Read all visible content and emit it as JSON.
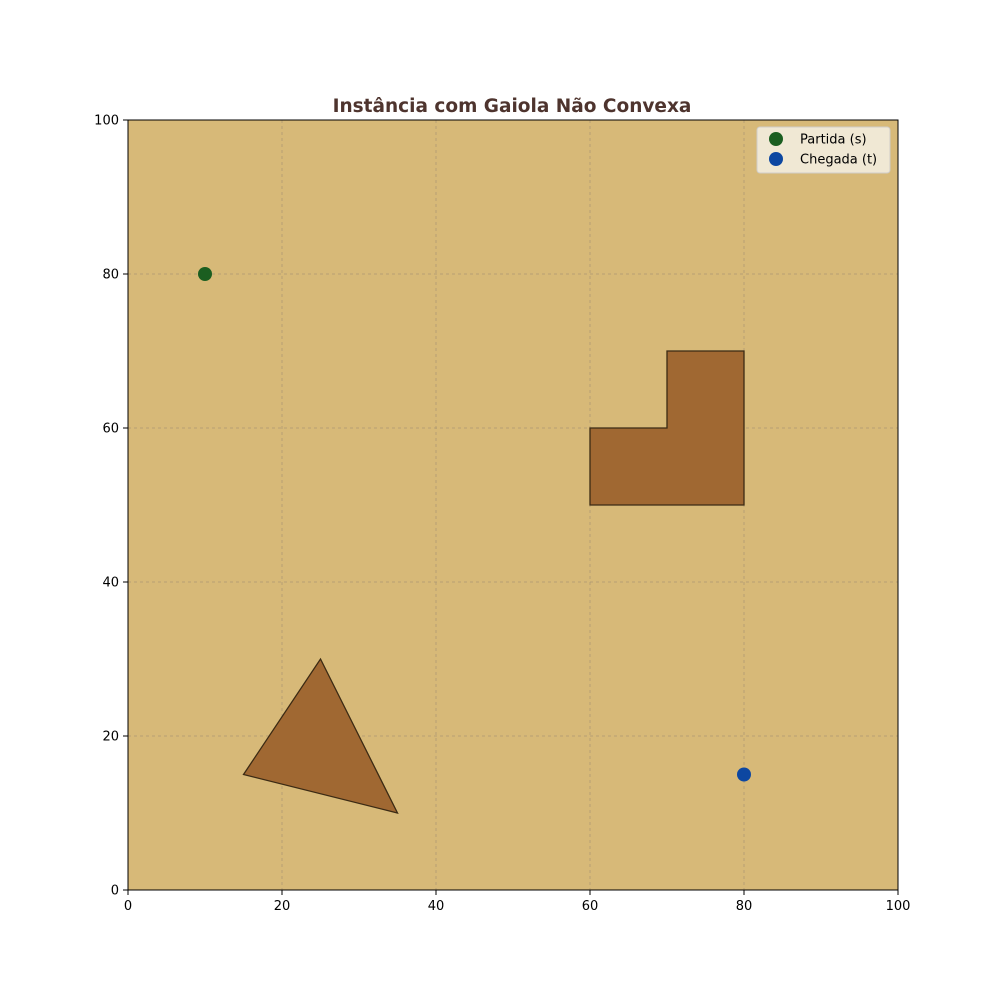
{
  "chart_data": {
    "type": "scatter",
    "title": "Instância com Gaiola Não Convexa",
    "xlabel": "",
    "ylabel": "",
    "xlim": [
      0,
      100
    ],
    "ylim": [
      0,
      100
    ],
    "x_ticks": [
      "0",
      "20",
      "40",
      "60",
      "80",
      "100"
    ],
    "y_ticks": [
      "0",
      "20",
      "40",
      "60",
      "80",
      "100"
    ],
    "grid": true,
    "legend_position": "top-right",
    "series": [
      {
        "name": "Partida (s)",
        "x": [
          10
        ],
        "y": [
          80
        ],
        "color": "#1b5e20"
      },
      {
        "name": "Chegada (t)",
        "x": [
          80
        ],
        "y": [
          15
        ],
        "color": "#0d47a1"
      }
    ],
    "polygons": [
      {
        "points": [
          [
            15,
            15
          ],
          [
            25,
            30
          ],
          [
            35,
            10
          ]
        ]
      },
      {
        "points": [
          [
            60,
            50
          ],
          [
            80,
            50
          ],
          [
            80,
            70
          ],
          [
            70,
            70
          ],
          [
            70,
            60
          ],
          [
            60,
            60
          ]
        ]
      }
    ],
    "colors": {
      "background": "#d7b978",
      "obstacle_fill": "#a06832",
      "obstacle_edge": "#3b2a14",
      "title": "#4e342e",
      "legend_bg": "#f3ecdc"
    }
  }
}
